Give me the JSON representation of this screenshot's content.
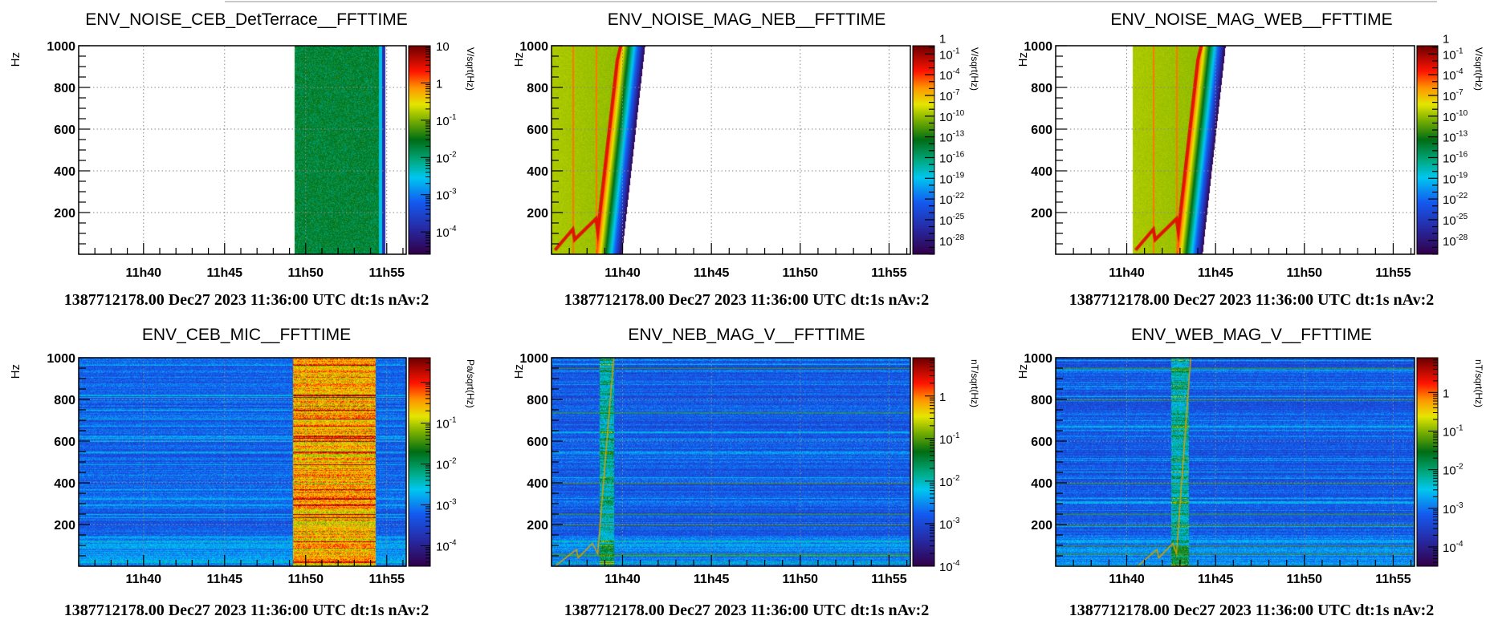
{
  "chart_data": [
    {
      "type": "heatmap",
      "title": "ENV_NOISE_CEB_DetTerrace__FFTTIME",
      "ylabel": "Hz",
      "ylim": [
        0,
        1000
      ],
      "yticks": [
        "200",
        "400",
        "600",
        "800",
        "1000"
      ],
      "ytick_values": [
        200,
        400,
        600,
        800,
        1000
      ],
      "xlim_minutes_after_11h": [
        36,
        56.2
      ],
      "xticks": [
        "11h40",
        "11h45",
        "11h50",
        "11h55"
      ],
      "xtick_values": [
        40,
        45,
        50,
        55
      ],
      "colorbar": {
        "label": "V/sqrt(Hz)",
        "log10_range": [
          -4.6,
          1
        ],
        "ticks": [
          {
            "log10": 1,
            "text": "10",
            "sup": ""
          },
          {
            "log10": 0,
            "text": "1",
            "sup": ""
          },
          {
            "log10": -1,
            "text": "10",
            "sup": "-1"
          },
          {
            "log10": -2,
            "text": "10",
            "sup": "-2"
          },
          {
            "log10": -3,
            "text": "10",
            "sup": "-3"
          },
          {
            "log10": -4,
            "text": "10",
            "sup": "-4"
          }
        ]
      },
      "kind": "noise_block",
      "data_regions": [
        {
          "start": 49.3,
          "end": 54.5,
          "level": 0.52
        },
        {
          "start": 54.5,
          "end": 54.7,
          "level": 0.38
        },
        {
          "start": 54.7,
          "end": 54.9,
          "level": 0.14
        }
      ],
      "footer": "1387712178.00 Dec27 2023 11:36:00 UTC dt:1s nAv:2"
    },
    {
      "type": "heatmap",
      "title": "ENV_NOISE_MAG_NEB__FFTTIME",
      "ylabel": "Hz",
      "ylim": [
        0,
        1000
      ],
      "yticks": [
        "200",
        "400",
        "600",
        "800",
        "1000"
      ],
      "ytick_values": [
        200,
        400,
        600,
        800,
        1000
      ],
      "xlim_minutes_after_11h": [
        36,
        56.2
      ],
      "xticks": [
        "11h40",
        "11h45",
        "11h50",
        "11h55"
      ],
      "xtick_values": [
        40,
        45,
        50,
        55
      ],
      "colorbar": {
        "label": "V/sqrt(Hz)",
        "log10_range": [
          -30,
          0.2
        ],
        "ticks": [
          {
            "log10": 0,
            "text": "1",
            "sup": ""
          },
          {
            "log10": -1,
            "text": "10",
            "sup": "-1"
          },
          {
            "log10": -4,
            "text": "10",
            "sup": "-4"
          },
          {
            "log10": -7,
            "text": "10",
            "sup": "-7"
          },
          {
            "log10": -10,
            "text": "10",
            "sup": "-10"
          },
          {
            "log10": -13,
            "text": "10",
            "sup": "-13"
          },
          {
            "log10": -16,
            "text": "10",
            "sup": "-16"
          },
          {
            "log10": -19,
            "text": "10",
            "sup": "-19"
          },
          {
            "log10": -22,
            "text": "10",
            "sup": "-22"
          },
          {
            "log10": -25,
            "text": "10",
            "sup": "-25"
          },
          {
            "log10": -28,
            "text": "10",
            "sup": "-28"
          }
        ]
      },
      "kind": "sweep",
      "sweep": {
        "start": 36,
        "edge_low": 38.5,
        "edge_high": 39.8,
        "fade_minutes": 1.45,
        "vlines": [
          37.2,
          38.5
        ],
        "trace": [
          [
            36.2,
            20
          ],
          [
            37.2,
            120
          ],
          [
            37.3,
            70
          ],
          [
            38.5,
            170
          ],
          [
            38.6,
            110
          ],
          [
            39.7,
            930
          ],
          [
            39.9,
            1000
          ]
        ]
      },
      "footer": "1387712178.00 Dec27 2023 11:36:00 UTC dt:1s nAv:2"
    },
    {
      "type": "heatmap",
      "title": "ENV_NOISE_MAG_WEB__FFTTIME",
      "ylabel": "Hz",
      "ylim": [
        0,
        1000
      ],
      "yticks": [
        "200",
        "400",
        "600",
        "800",
        "1000"
      ],
      "ytick_values": [
        200,
        400,
        600,
        800,
        1000
      ],
      "xlim_minutes_after_11h": [
        36,
        56.2
      ],
      "xticks": [
        "11h40",
        "11h45",
        "11h50",
        "11h55"
      ],
      "xtick_values": [
        40,
        45,
        50,
        55
      ],
      "colorbar": {
        "label": "V/sqrt(Hz)",
        "log10_range": [
          -30,
          0.2
        ],
        "ticks": [
          {
            "log10": 0,
            "text": "1",
            "sup": ""
          },
          {
            "log10": -1,
            "text": "10",
            "sup": "-1"
          },
          {
            "log10": -4,
            "text": "10",
            "sup": "-4"
          },
          {
            "log10": -7,
            "text": "10",
            "sup": "-7"
          },
          {
            "log10": -10,
            "text": "10",
            "sup": "-10"
          },
          {
            "log10": -13,
            "text": "10",
            "sup": "-13"
          },
          {
            "log10": -16,
            "text": "10",
            "sup": "-16"
          },
          {
            "log10": -19,
            "text": "10",
            "sup": "-19"
          },
          {
            "log10": -22,
            "text": "10",
            "sup": "-22"
          },
          {
            "log10": -25,
            "text": "10",
            "sup": "-25"
          },
          {
            "log10": -28,
            "text": "10",
            "sup": "-28"
          }
        ]
      },
      "kind": "sweep",
      "sweep": {
        "start": 40.3,
        "edge_low": 42.8,
        "edge_high": 44.1,
        "fade_minutes": 1.45,
        "vlines": [
          41.5,
          42.8
        ],
        "trace": [
          [
            40.5,
            20
          ],
          [
            41.5,
            120
          ],
          [
            41.6,
            70
          ],
          [
            42.8,
            170
          ],
          [
            42.9,
            110
          ],
          [
            44.0,
            930
          ],
          [
            44.2,
            1000
          ]
        ]
      },
      "footer": "1387712178.00 Dec27 2023 11:36:00 UTC dt:1s nAv:2"
    },
    {
      "type": "heatmap",
      "title": "ENV_CEB_MIC__FFTTIME",
      "ylabel": "Hz",
      "ylim": [
        0,
        1000
      ],
      "yticks": [
        "200",
        "400",
        "600",
        "800",
        "1000"
      ],
      "ytick_values": [
        200,
        400,
        600,
        800,
        1000
      ],
      "xlim_minutes_after_11h": [
        36,
        56.2
      ],
      "xticks": [
        "11h40",
        "11h45",
        "11h50",
        "11h55"
      ],
      "xtick_values": [
        40,
        45,
        50,
        55
      ],
      "colorbar": {
        "label": "Pa/sqrt(Hz)",
        "log10_range": [
          -4.5,
          0.6
        ],
        "ticks": [
          {
            "log10": -1,
            "text": "10",
            "sup": "-1"
          },
          {
            "log10": -2,
            "text": "10",
            "sup": "-2"
          },
          {
            "log10": -3,
            "text": "10",
            "sup": "-3"
          },
          {
            "log10": -4,
            "text": "10",
            "sup": "-4"
          }
        ]
      },
      "kind": "background",
      "background": {
        "level": 0.25,
        "hot": {
          "start": 49.2,
          "end": 54.3,
          "level": 0.76
        },
        "lines_hz": [],
        "trace": []
      },
      "footer": "1387712178.00 Dec27 2023 11:36:00 UTC dt:1s nAv:2"
    },
    {
      "type": "heatmap",
      "title": "ENV_NEB_MAG_V__FFTTIME",
      "ylabel": "Hz",
      "ylim": [
        0,
        1000
      ],
      "yticks": [
        "200",
        "400",
        "600",
        "800",
        "1000"
      ],
      "ytick_values": [
        200,
        400,
        600,
        800,
        1000
      ],
      "xlim_minutes_after_11h": [
        36,
        56.2
      ],
      "xticks": [
        "11h40",
        "11h45",
        "11h50",
        "11h55"
      ],
      "xtick_values": [
        40,
        45,
        50,
        55
      ],
      "colorbar": {
        "label": "nT/sqrt(Hz)",
        "log10_range": [
          -4,
          0.9
        ],
        "ticks": [
          {
            "log10": 0,
            "text": "1",
            "sup": ""
          },
          {
            "log10": -1,
            "text": "10",
            "sup": "-1"
          },
          {
            "log10": -2,
            "text": "10",
            "sup": "-2"
          },
          {
            "log10": -3,
            "text": "10",
            "sup": "-3"
          },
          {
            "log10": -4,
            "text": "10",
            "sup": "-4"
          }
        ]
      },
      "kind": "background",
      "background": {
        "level": 0.24,
        "hot": {
          "start": 38.7,
          "end": 39.5,
          "level": 0.42
        },
        "lines_hz": [
          50,
          60,
          200,
          250,
          400,
          740,
          950
        ],
        "trace": [
          [
            36.2,
            0
          ],
          [
            37.4,
            80
          ],
          [
            37.5,
            40
          ],
          [
            38.3,
            110
          ],
          [
            38.6,
            60
          ],
          [
            39.5,
            1000
          ]
        ]
      },
      "footer": "1387712178.00 Dec27 2023 11:36:00 UTC dt:1s nAv:2"
    },
    {
      "type": "heatmap",
      "title": "ENV_WEB_MAG_V__FFTTIME",
      "ylabel": "Hz",
      "ylim": [
        0,
        1000
      ],
      "yticks": [
        "200",
        "400",
        "600",
        "800",
        "1000"
      ],
      "ytick_values": [
        200,
        400,
        600,
        800,
        1000
      ],
      "xlim_minutes_after_11h": [
        36,
        56.2
      ],
      "xticks": [
        "11h40",
        "11h45",
        "11h50",
        "11h55"
      ],
      "xtick_values": [
        40,
        45,
        50,
        55
      ],
      "colorbar": {
        "label": "nT/sqrt(Hz)",
        "log10_range": [
          -4.5,
          0.9
        ],
        "ticks": [
          {
            "log10": 0,
            "text": "1",
            "sup": ""
          },
          {
            "log10": -1,
            "text": "10",
            "sup": "-1"
          },
          {
            "log10": -2,
            "text": "10",
            "sup": "-2"
          },
          {
            "log10": -3,
            "text": "10",
            "sup": "-3"
          },
          {
            "log10": -4,
            "text": "10",
            "sup": "-4"
          }
        ]
      },
      "kind": "background",
      "background": {
        "level": 0.24,
        "hot": {
          "start": 42.5,
          "end": 43.5,
          "level": 0.42
        },
        "lines_hz": [
          60,
          100,
          200,
          250,
          400,
          800,
          950
        ],
        "trace": [
          [
            40.6,
            0
          ],
          [
            41.7,
            80
          ],
          [
            41.8,
            40
          ],
          [
            42.6,
            110
          ],
          [
            42.8,
            60
          ],
          [
            43.6,
            1000
          ]
        ]
      },
      "footer": "1387712178.00 Dec27 2023 11:36:00 UTC dt:1s nAv:2"
    }
  ],
  "palette": [
    "#320046",
    "#2828a0",
    "#145af0",
    "#00c8f0",
    "#00aa82",
    "#006e14",
    "#82b400",
    "#e6e600",
    "#ff9600",
    "#ff1400",
    "#6e0000"
  ]
}
